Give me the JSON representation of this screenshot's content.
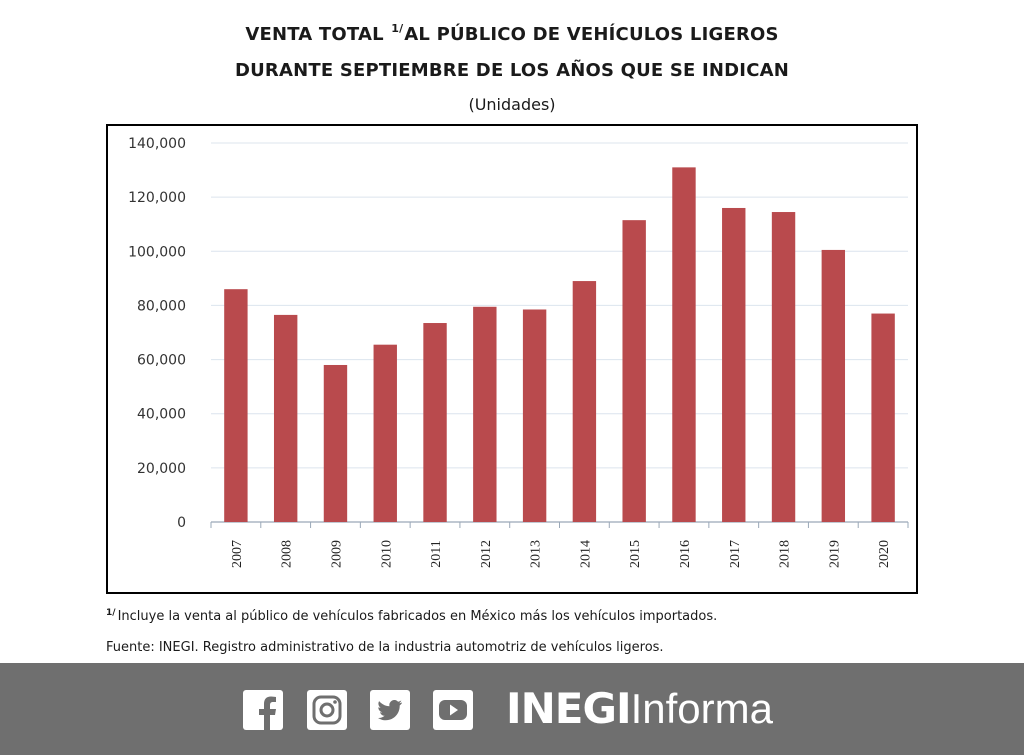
{
  "header": {
    "title_line1_a": "VENTA TOTAL ",
    "title_sup": "1/",
    "title_line1_b": "AL PÚBLICO DE VEHÍCULOS LIGEROS",
    "title_line2": "DURANTE SEPTIEMBRE DE LOS AÑOS QUE SE INDICAN",
    "subtitle": "(Unidades)"
  },
  "notes": {
    "footnote_mark": "1/",
    "footnote_text": "Incluye la venta al público de vehículos fabricados en México más los vehículos importados.",
    "source": "Fuente: INEGI. Registro administrativo de la industria automotriz de vehículos ligeros."
  },
  "footer": {
    "social_icons": [
      "facebook-icon",
      "instagram-icon",
      "twitter-icon",
      "youtube-icon"
    ],
    "brand_bold": "INEGI",
    "brand_light": "Informa",
    "background": "#6f6f6f"
  },
  "chart_data": {
    "type": "bar",
    "categories": [
      "2007",
      "2008",
      "2009",
      "2010",
      "2011",
      "2012",
      "2013",
      "2014",
      "2015",
      "2016",
      "2017",
      "2018",
      "2019",
      "2020"
    ],
    "values": [
      86000,
      76500,
      58000,
      65500,
      73500,
      79500,
      78500,
      89000,
      111500,
      131000,
      116000,
      114500,
      100500,
      77000
    ],
    "ylim": [
      0,
      140000
    ],
    "yticks": [
      0,
      20000,
      40000,
      60000,
      80000,
      100000,
      120000,
      140000
    ],
    "ytick_labels": [
      "0",
      "20,000",
      "40,000",
      "60,000",
      "80,000",
      "100,000",
      "120,000",
      "140,000"
    ],
    "bar_color": "#b94a4d",
    "grid": true,
    "legend": "none"
  }
}
